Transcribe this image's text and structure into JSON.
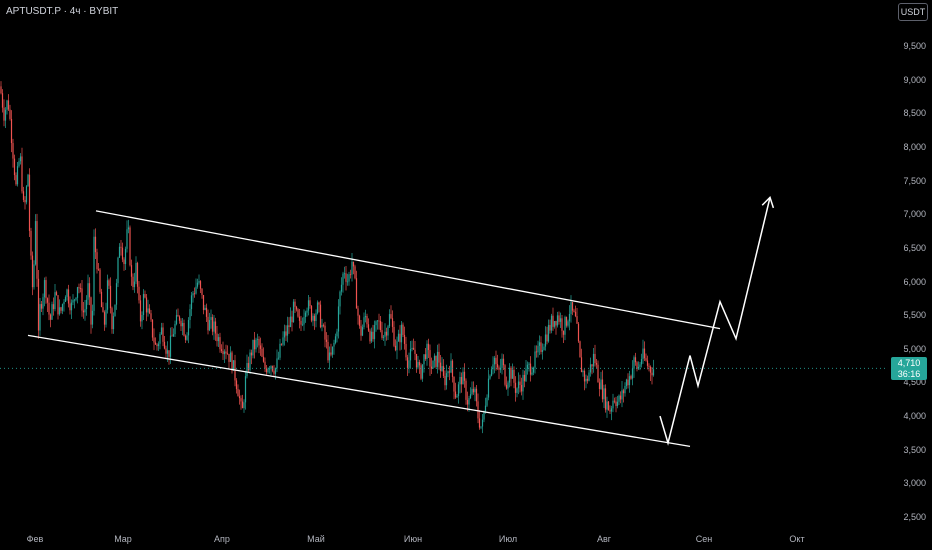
{
  "header": {
    "symbol_text": "APTUSDT.P · 4ч · BYBIT",
    "currency_button": "USDT"
  },
  "price_axis": {
    "ticks": [
      "9,500",
      "9,000",
      "8,500",
      "8,000",
      "7,500",
      "7,000",
      "6,500",
      "6,000",
      "5,500",
      "5,000",
      "4,500",
      "4,000",
      "3,500",
      "3,000",
      "2,500"
    ]
  },
  "time_axis": {
    "ticks": [
      "Фев",
      "Мар",
      "Апр",
      "Май",
      "Июн",
      "Июл",
      "Авг",
      "Сен",
      "Окт"
    ]
  },
  "current_price": {
    "value": "4,710",
    "countdown": "36:16",
    "color": "#26a69a"
  },
  "colors": {
    "up": "#26a69a",
    "down": "#ef5350",
    "drawing": "#ffffff",
    "background": "#000000"
  },
  "chart_data": {
    "type": "candlestick",
    "symbol": "APTUSDT.P",
    "interval": "4ч",
    "exchange": "BYBIT",
    "y_range": [
      2400,
      9800
    ],
    "y_ticks": [
      9500,
      9000,
      8500,
      8000,
      7500,
      7000,
      6500,
      6000,
      5500,
      5000,
      4500,
      4000,
      3500,
      3000,
      2500
    ],
    "x_labels": [
      "Фев",
      "Мар",
      "Апр",
      "Май",
      "Июн",
      "Июл",
      "Авг",
      "Сен",
      "Окт"
    ],
    "current_price": 4710,
    "price_path": [
      [
        0,
        8900
      ],
      [
        4,
        8500
      ],
      [
        8,
        8700
      ],
      [
        12,
        8100
      ],
      [
        16,
        7400
      ],
      [
        20,
        7900
      ],
      [
        24,
        7000
      ],
      [
        28,
        7600
      ],
      [
        30,
        6500
      ],
      [
        33,
        5800
      ],
      [
        36,
        7200
      ],
      [
        38,
        5000
      ],
      [
        40,
        5600
      ],
      [
        45,
        6000
      ],
      [
        50,
        5400
      ],
      [
        55,
        5800
      ],
      [
        60,
        5500
      ],
      [
        66,
        5900
      ],
      [
        72,
        5600
      ],
      [
        78,
        6000
      ],
      [
        84,
        5500
      ],
      [
        88,
        5900
      ],
      [
        92,
        5200
      ],
      [
        94,
        6600
      ],
      [
        97,
        6300
      ],
      [
        100,
        5800
      ],
      [
        104,
        5300
      ],
      [
        108,
        6000
      ],
      [
        112,
        5400
      ],
      [
        116,
        5800
      ],
      [
        120,
        6700
      ],
      [
        124,
        6300
      ],
      [
        128,
        6800
      ],
      [
        132,
        5900
      ],
      [
        136,
        6200
      ],
      [
        140,
        5400
      ],
      [
        144,
        5800
      ],
      [
        150,
        5400
      ],
      [
        156,
        5000
      ],
      [
        162,
        5300
      ],
      [
        168,
        4900
      ],
      [
        174,
        5300
      ],
      [
        180,
        5500
      ],
      [
        186,
        5200
      ],
      [
        192,
        5800
      ],
      [
        198,
        6000
      ],
      [
        204,
        5600
      ],
      [
        208,
        5400
      ],
      [
        214,
        5300
      ],
      [
        220,
        5100
      ],
      [
        226,
        5000
      ],
      [
        232,
        4800
      ],
      [
        238,
        4400
      ],
      [
        242,
        4000
      ],
      [
        246,
        4600
      ],
      [
        252,
        5000
      ],
      [
        258,
        5100
      ],
      [
        264,
        4700
      ],
      [
        270,
        4800
      ],
      [
        276,
        4700
      ],
      [
        282,
        5100
      ],
      [
        288,
        5300
      ],
      [
        294,
        5600
      ],
      [
        300,
        5300
      ],
      [
        306,
        5700
      ],
      [
        312,
        5500
      ],
      [
        318,
        5600
      ],
      [
        324,
        5200
      ],
      [
        330,
        4800
      ],
      [
        336,
        5200
      ],
      [
        340,
        5800
      ],
      [
        344,
        6200
      ],
      [
        348,
        6000
      ],
      [
        352,
        6300
      ],
      [
        356,
        5800
      ],
      [
        360,
        5200
      ],
      [
        366,
        5500
      ],
      [
        372,
        5100
      ],
      [
        378,
        5400
      ],
      [
        384,
        5200
      ],
      [
        390,
        5500
      ],
      [
        396,
        5000
      ],
      [
        402,
        5300
      ],
      [
        408,
        4800
      ],
      [
        414,
        5000
      ],
      [
        420,
        4600
      ],
      [
        426,
        5000
      ],
      [
        432,
        4700
      ],
      [
        438,
        4900
      ],
      [
        444,
        4500
      ],
      [
        450,
        4800
      ],
      [
        456,
        4300
      ],
      [
        462,
        4600
      ],
      [
        468,
        4200
      ],
      [
        474,
        4400
      ],
      [
        478,
        4000
      ],
      [
        482,
        3800
      ],
      [
        486,
        4300
      ],
      [
        490,
        4700
      ],
      [
        494,
        4900
      ],
      [
        498,
        4600
      ],
      [
        502,
        4800
      ],
      [
        506,
        4500
      ],
      [
        510,
        4700
      ],
      [
        516,
        4400
      ],
      [
        522,
        4500
      ],
      [
        528,
        4700
      ],
      [
        534,
        4800
      ],
      [
        540,
        5000
      ],
      [
        546,
        5200
      ],
      [
        552,
        5400
      ],
      [
        558,
        5500
      ],
      [
        564,
        5300
      ],
      [
        570,
        5600
      ],
      [
        576,
        5400
      ],
      [
        580,
        4800
      ],
      [
        586,
        4500
      ],
      [
        590,
        4700
      ],
      [
        594,
        4900
      ],
      [
        598,
        4600
      ],
      [
        602,
        4400
      ],
      [
        606,
        4200
      ],
      [
        610,
        4100
      ],
      [
        614,
        4300
      ],
      [
        618,
        4200
      ],
      [
        622,
        4300
      ],
      [
        626,
        4500
      ],
      [
        630,
        4600
      ],
      [
        634,
        4800
      ],
      [
        638,
        4700
      ],
      [
        642,
        4900
      ],
      [
        646,
        4800
      ],
      [
        650,
        4700
      ],
      [
        654,
        4710
      ]
    ],
    "drawings": {
      "upper_trendline": [
        [
          96,
          7050
        ],
        [
          720,
          5300
        ]
      ],
      "lower_trendline": [
        [
          28,
          5200
        ],
        [
          690,
          3550
        ]
      ],
      "forecast_path": [
        [
          660,
          4000
        ],
        [
          668,
          3600
        ],
        [
          690,
          4900
        ],
        [
          698,
          4450
        ],
        [
          720,
          5700
        ],
        [
          736,
          5150
        ],
        [
          770,
          7250
        ]
      ]
    }
  }
}
